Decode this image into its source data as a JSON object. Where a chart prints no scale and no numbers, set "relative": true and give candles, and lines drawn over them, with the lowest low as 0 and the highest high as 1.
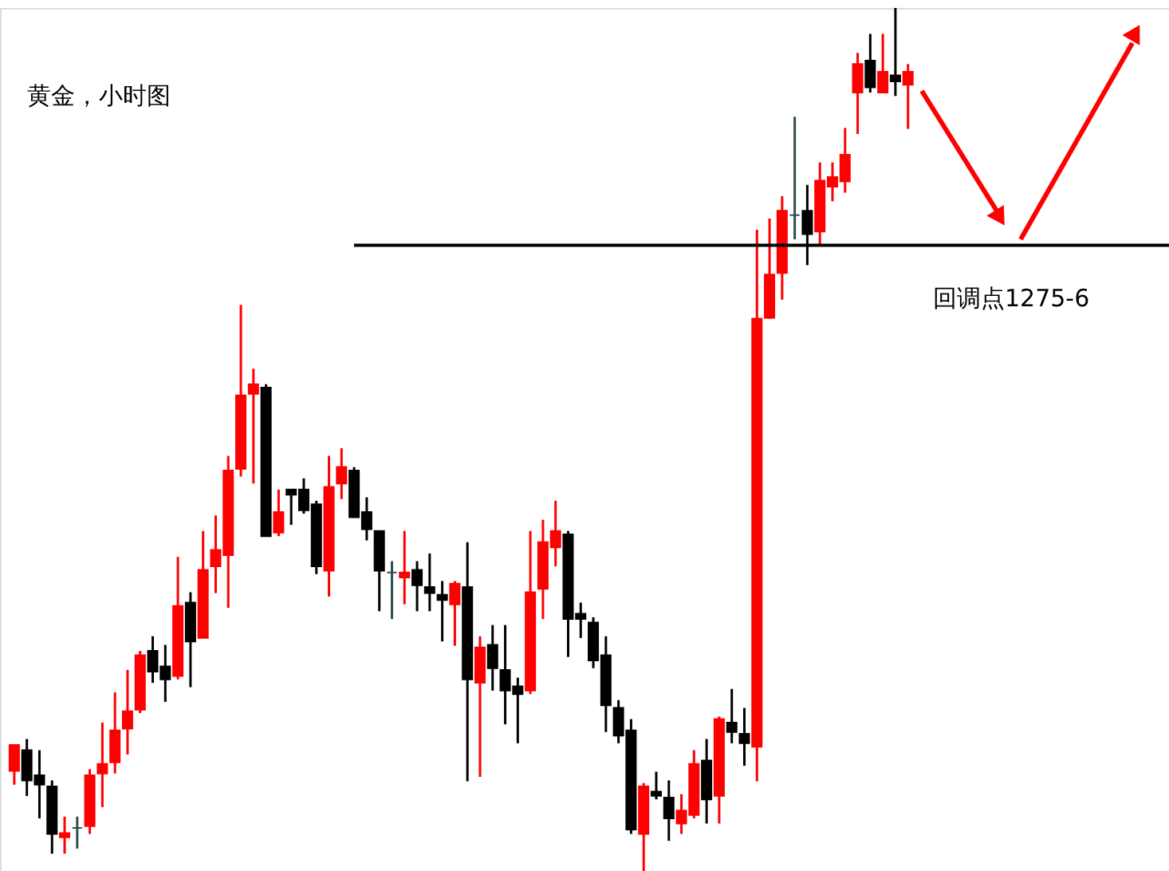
{
  "chart_data": {
    "type": "candlestick",
    "title": "黄金，小时图",
    "relative": true,
    "categories": [
      null,
      null,
      null,
      null,
      null,
      null,
      null,
      null,
      null,
      null,
      null,
      null,
      null,
      null,
      null,
      null,
      null,
      null,
      null,
      null,
      null,
      null,
      null,
      null,
      null,
      null,
      null,
      null,
      null,
      null,
      null,
      null,
      null,
      null,
      null,
      null,
      null,
      null,
      null,
      null,
      null,
      null,
      null,
      null,
      null,
      null,
      null,
      null,
      null,
      null,
      null,
      null,
      null,
      null,
      null,
      null,
      null,
      null,
      null,
      null,
      null,
      null,
      null,
      null,
      null,
      null,
      null,
      null,
      null,
      null,
      null,
      null
    ],
    "ohlc": [
      [
        0.116,
        0.146,
        0.1,
        0.146
      ],
      [
        0.14,
        0.153,
        0.087,
        0.105
      ],
      [
        0.111,
        0.14,
        0.061,
        0.1
      ],
      [
        0.098,
        0.105,
        0.02,
        0.043
      ],
      [
        0.039,
        0.063,
        0.02,
        0.044
      ],
      [
        0.05,
        0.063,
        0.026,
        0.05
      ],
      [
        0.052,
        0.118,
        0.043,
        0.111
      ],
      [
        0.113,
        0.172,
        0.074,
        0.124
      ],
      [
        0.126,
        0.207,
        0.113,
        0.163
      ],
      [
        0.165,
        0.233,
        0.135,
        0.185
      ],
      [
        0.187,
        0.255,
        0.183,
        0.25
      ],
      [
        0.255,
        0.272,
        0.218,
        0.231
      ],
      [
        0.237,
        0.262,
        0.196,
        0.222
      ],
      [
        0.226,
        0.364,
        0.222,
        0.307
      ],
      [
        0.311,
        0.323,
        0.213,
        0.266
      ],
      [
        0.27,
        0.394,
        0.27,
        0.349
      ],
      [
        0.353,
        0.412,
        0.322,
        0.372
      ],
      [
        0.366,
        0.481,
        0.305,
        0.464
      ],
      [
        0.466,
        0.656,
        0.457,
        0.551
      ],
      [
        0.553,
        0.582,
        0.449,
        0.564
      ],
      [
        0.56,
        0.564,
        0.388,
        0.388
      ],
      [
        0.392,
        0.442,
        0.388,
        0.416
      ],
      [
        0.442,
        0.442,
        0.401,
        0.436
      ],
      [
        0.442,
        0.455,
        0.414,
        0.418
      ],
      [
        0.425,
        0.429,
        0.344,
        0.353
      ],
      [
        0.348,
        0.481,
        0.318,
        0.445
      ],
      [
        0.449,
        0.49,
        0.431,
        0.468
      ],
      [
        0.464,
        0.468,
        0.41,
        0.41
      ],
      [
        0.416,
        0.433,
        0.383,
        0.396
      ],
      [
        0.394,
        0.394,
        0.301,
        0.348
      ],
      [
        0.346,
        0.359,
        0.292,
        0.346
      ],
      [
        0.34,
        0.394,
        0.309,
        0.346
      ],
      [
        0.349,
        0.359,
        0.301,
        0.331
      ],
      [
        0.329,
        0.368,
        0.301,
        0.322
      ],
      [
        0.32,
        0.336,
        0.266,
        0.314
      ],
      [
        0.309,
        0.336,
        0.261,
        0.333
      ],
      [
        0.329,
        0.381,
        0.104,
        0.222
      ],
      [
        0.218,
        0.272,
        0.109,
        0.259
      ],
      [
        0.262,
        0.285,
        0.209,
        0.235
      ],
      [
        0.233,
        0.285,
        0.17,
        0.209
      ],
      [
        0.214,
        0.224,
        0.148,
        0.205
      ],
      [
        0.209,
        0.394,
        0.205,
        0.323
      ],
      [
        0.327,
        0.407,
        0.292,
        0.381
      ],
      [
        0.375,
        0.429,
        0.353,
        0.394
      ],
      [
        0.39,
        0.394,
        0.248,
        0.292
      ],
      [
        0.298,
        0.311,
        0.27,
        0.292
      ],
      [
        0.288,
        0.294,
        0.235,
        0.244
      ],
      [
        0.25,
        0.272,
        0.161,
        0.192
      ],
      [
        0.189,
        0.198,
        0.148,
        0.157
      ],
      [
        0.163,
        0.176,
        0.043,
        0.048
      ],
      [
        0.043,
        0.102,
        0.0,
        0.098
      ],
      [
        0.092,
        0.115,
        0.083,
        0.087
      ],
      [
        0.085,
        0.105,
        0.035,
        0.061
      ],
      [
        0.055,
        0.089,
        0.043,
        0.07
      ],
      [
        0.065,
        0.14,
        0.061,
        0.124
      ],
      [
        0.128,
        0.153,
        0.055,
        0.083
      ],
      [
        0.087,
        0.179,
        0.055,
        0.176
      ],
      [
        0.172,
        0.211,
        0.148,
        0.161
      ],
      [
        0.159,
        0.189,
        0.122,
        0.148
      ],
      [
        0.144,
        0.743,
        0.104,
        0.64
      ],
      [
        0.641,
        0.756,
        0.64,
        0.691
      ],
      [
        0.693,
        0.782,
        0.662,
        0.765
      ],
      [
        0.76,
        0.874,
        0.732,
        0.76
      ],
      [
        0.765,
        0.795,
        0.702,
        0.738
      ],
      [
        0.741,
        0.821,
        0.725,
        0.8
      ],
      [
        0.793,
        0.821,
        0.776,
        0.804
      ],
      [
        0.799,
        0.861,
        0.786,
        0.83
      ],
      [
        0.902,
        0.948,
        0.854,
        0.935
      ],
      [
        0.939,
        0.97,
        0.902,
        0.908
      ],
      [
        0.902,
        0.97,
        0.902,
        0.926
      ],
      [
        0.922,
        1.0,
        0.898,
        0.915
      ],
      [
        0.911,
        0.935,
        0.86,
        0.926
      ]
    ],
    "colors": [
      "#ff0000",
      "#000000",
      "#000000",
      "#000000",
      "#ff0000",
      "#2f4f4f",
      "#ff0000",
      "#ff0000",
      "#ff0000",
      "#ff0000",
      "#ff0000",
      "#000000",
      "#000000",
      "#ff0000",
      "#000000",
      "#ff0000",
      "#ff0000",
      "#ff0000",
      "#ff0000",
      "#ff0000",
      "#000000",
      "#ff0000",
      "#000000",
      "#000000",
      "#000000",
      "#ff0000",
      "#ff0000",
      "#000000",
      "#000000",
      "#000000",
      "#2f4f4f",
      "#ff0000",
      "#000000",
      "#000000",
      "#000000",
      "#ff0000",
      "#000000",
      "#ff0000",
      "#000000",
      "#000000",
      "#000000",
      "#ff0000",
      "#ff0000",
      "#ff0000",
      "#000000",
      "#000000",
      "#000000",
      "#000000",
      "#000000",
      "#000000",
      "#ff0000",
      "#000000",
      "#000000",
      "#ff0000",
      "#ff0000",
      "#000000",
      "#ff0000",
      "#000000",
      "#000000",
      "#ff0000",
      "#ff0000",
      "#ff0000",
      "#2f4f4f",
      "#000000",
      "#ff0000",
      "#ff0000",
      "#ff0000",
      "#ff0000",
      "#000000",
      "#ff0000",
      "#000000",
      "#ff0000"
    ],
    "ref_lines": [
      {
        "axis": "y",
        "value": 0.725,
        "label": "回调点1275-6",
        "color": "#000000"
      }
    ]
  }
}
